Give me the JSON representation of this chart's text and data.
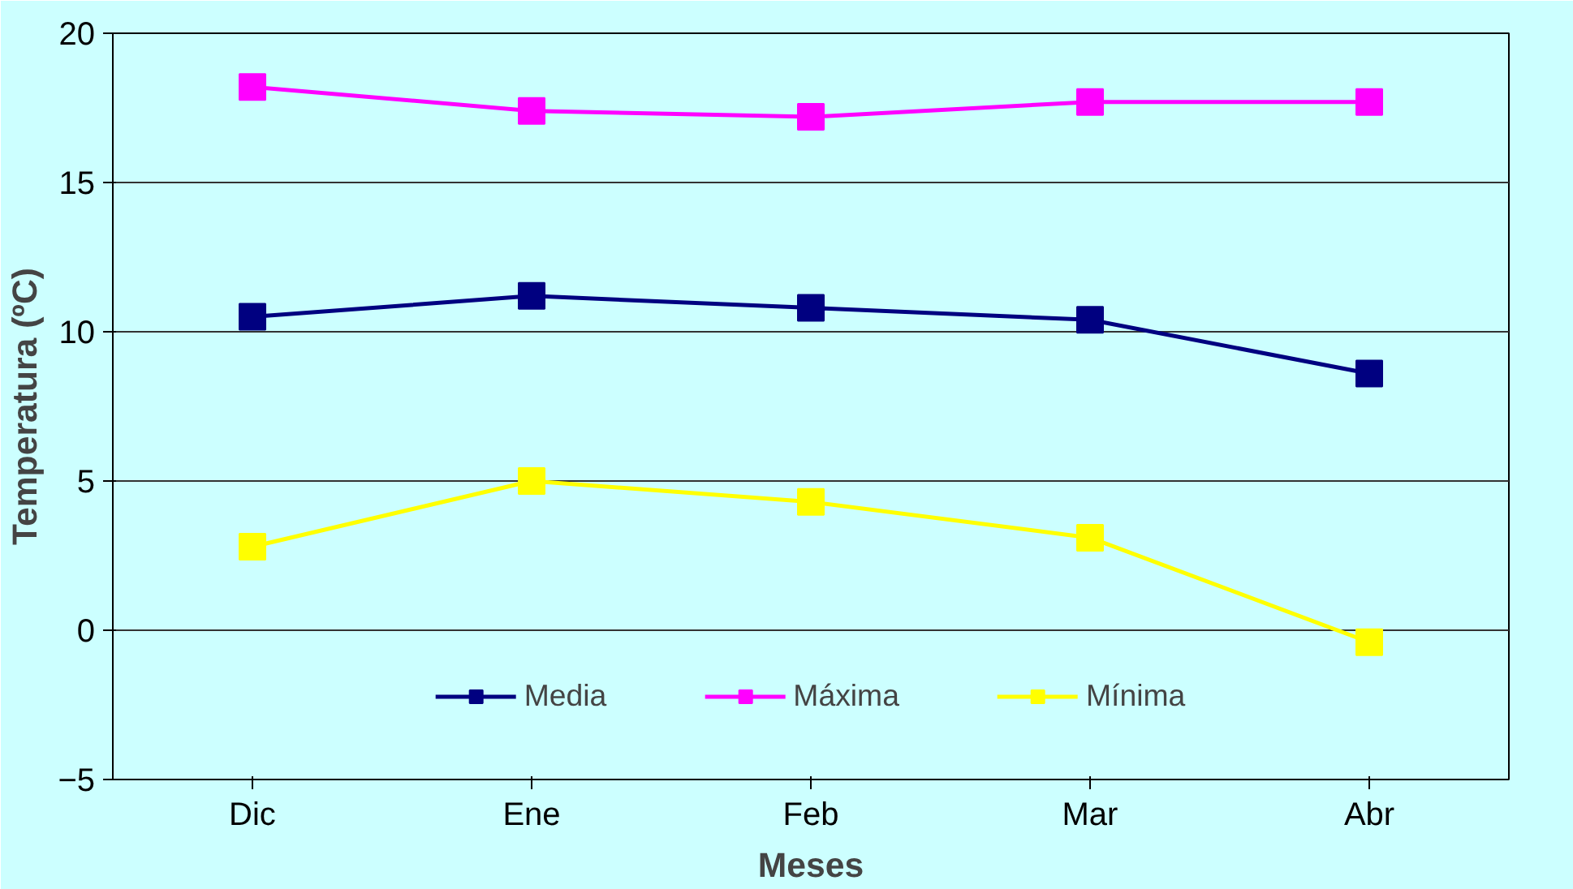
{
  "chart_data": {
    "type": "line",
    "xlabel": "Meses",
    "ylabel": "Temperatura (ºC)",
    "categories": [
      "Dic",
      "Ene",
      "Feb",
      "Mar",
      "Abr"
    ],
    "series": [
      {
        "name": "Media",
        "color": "#000080",
        "values": [
          10.5,
          11.2,
          10.8,
          10.4,
          8.6
        ]
      },
      {
        "name": "Máxima",
        "color": "#ff00ff",
        "values": [
          18.2,
          17.4,
          17.2,
          17.7,
          17.7
        ]
      },
      {
        "name": "Mínima",
        "color": "#ffff00",
        "values": [
          2.8,
          5.0,
          4.3,
          3.1,
          -0.4
        ]
      }
    ],
    "ylim": [
      -5,
      20
    ],
    "yticks": [
      -5,
      0,
      5,
      10,
      15,
      20
    ],
    "grid": "y",
    "legend": "bottom",
    "marker": "square",
    "line_style": "solid"
  }
}
